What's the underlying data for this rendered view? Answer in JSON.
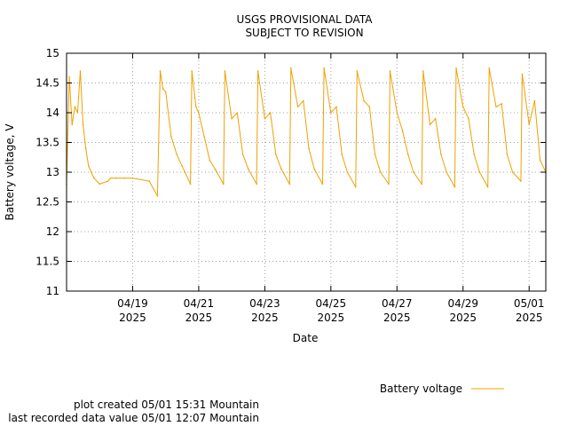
{
  "chart_data": {
    "type": "line",
    "title": "USGS PROVISIONAL DATA",
    "subtitle": "SUBJECT TO REVISION",
    "xlabel": "Date",
    "ylabel": "Battery voltage, V",
    "ylim": [
      11,
      15
    ],
    "xlim": [
      "2025-04-17 00:00",
      "2025-05-01 12:07"
    ],
    "yticks": [
      "11",
      "11.5",
      "12",
      "12.5",
      "13",
      "13.5",
      "14",
      "14.5",
      "15"
    ],
    "xticks": [
      {
        "date": "2025-04-19",
        "label": "04/19",
        "year": "2025"
      },
      {
        "date": "2025-04-21",
        "label": "04/21",
        "year": "2025"
      },
      {
        "date": "2025-04-23",
        "label": "04/23",
        "year": "2025"
      },
      {
        "date": "2025-04-25",
        "label": "04/25",
        "year": "2025"
      },
      {
        "date": "2025-04-27",
        "label": "04/27",
        "year": "2025"
      },
      {
        "date": "2025-04-29",
        "label": "04/29",
        "year": "2025"
      },
      {
        "date": "2025-05-01",
        "label": "05/01",
        "year": "2025"
      }
    ],
    "grid": true,
    "legend_position": "bottom-right",
    "series": [
      {
        "name": "Battery voltage",
        "color": "#f0a000",
        "x": [
          "2025-04-17 00:00",
          "2025-04-17 02:00",
          "2025-04-17 04:00",
          "2025-04-17 06:00",
          "2025-04-17 08:00",
          "2025-04-17 10:00",
          "2025-04-17 12:00",
          "2025-04-17 14:00",
          "2025-04-17 16:00",
          "2025-04-17 18:00",
          "2025-04-17 20:00",
          "2025-04-18 00:00",
          "2025-04-18 06:00",
          "2025-04-18 08:00",
          "2025-04-18 12:00",
          "2025-04-18 18:00",
          "2025-04-19 00:00",
          "2025-04-19 12:00",
          "2025-04-19 18:00",
          "2025-04-19 20:00",
          "2025-04-19 22:00",
          "2025-04-20 00:00",
          "2025-04-20 04:00",
          "2025-04-20 08:00",
          "2025-04-20 12:00",
          "2025-04-20 18:00",
          "2025-04-20 19:00",
          "2025-04-20 22:00",
          "2025-04-21 00:00",
          "2025-04-21 04:00",
          "2025-04-21 08:00",
          "2025-04-21 12:00",
          "2025-04-21 18:00",
          "2025-04-21 19:00",
          "2025-04-22 00:00",
          "2025-04-22 04:00",
          "2025-04-22 08:00",
          "2025-04-22 12:00",
          "2025-04-22 18:00",
          "2025-04-22 19:00",
          "2025-04-23 00:00",
          "2025-04-23 04:00",
          "2025-04-23 08:00",
          "2025-04-23 12:00",
          "2025-04-23 18:00",
          "2025-04-23 19:00",
          "2025-04-24 00:00",
          "2025-04-24 04:00",
          "2025-04-24 08:00",
          "2025-04-24 12:00",
          "2025-04-24 18:00",
          "2025-04-24 19:00",
          "2025-04-25 00:00",
          "2025-04-25 04:00",
          "2025-04-25 08:00",
          "2025-04-25 12:00",
          "2025-04-25 18:00",
          "2025-04-25 19:00",
          "2025-04-26 00:00",
          "2025-04-26 04:00",
          "2025-04-26 08:00",
          "2025-04-26 12:00",
          "2025-04-26 18:00",
          "2025-04-26 19:00",
          "2025-04-27 00:00",
          "2025-04-27 04:00",
          "2025-04-27 08:00",
          "2025-04-27 12:00",
          "2025-04-27 18:00",
          "2025-04-27 19:00",
          "2025-04-28 00:00",
          "2025-04-28 04:00",
          "2025-04-28 08:00",
          "2025-04-28 12:00",
          "2025-04-28 18:00",
          "2025-04-28 19:00",
          "2025-04-29 00:00",
          "2025-04-29 04:00",
          "2025-04-29 08:00",
          "2025-04-29 12:00",
          "2025-04-29 18:00",
          "2025-04-29 19:00",
          "2025-04-30 00:00",
          "2025-04-30 04:00",
          "2025-04-30 08:00",
          "2025-04-30 12:00",
          "2025-04-30 18:00",
          "2025-04-30 19:00",
          "2025-05-01 00:00",
          "2025-05-01 04:00",
          "2025-05-01 08:00",
          "2025-05-01 12:07"
        ],
        "y": [
          12.8,
          14.6,
          13.8,
          14.1,
          14.0,
          14.7,
          13.8,
          13.4,
          13.1,
          13.0,
          12.9,
          12.8,
          12.85,
          12.9,
          12.9,
          12.9,
          12.9,
          12.85,
          12.6,
          14.7,
          14.4,
          14.35,
          13.6,
          13.3,
          13.1,
          12.8,
          14.7,
          14.1,
          14.0,
          13.6,
          13.2,
          13.05,
          12.8,
          14.7,
          13.9,
          14.0,
          13.3,
          13.05,
          12.8,
          14.7,
          13.9,
          14.0,
          13.3,
          13.05,
          12.8,
          14.75,
          14.1,
          14.2,
          13.4,
          13.05,
          12.8,
          14.75,
          14.0,
          14.1,
          13.3,
          13.0,
          12.75,
          14.7,
          14.2,
          14.1,
          13.3,
          13.0,
          12.8,
          14.7,
          14.0,
          13.7,
          13.3,
          13.0,
          12.8,
          14.7,
          13.8,
          13.9,
          13.3,
          13.0,
          12.75,
          14.75,
          14.1,
          13.9,
          13.3,
          13.0,
          12.75,
          14.75,
          14.1,
          14.15,
          13.3,
          13.0,
          12.85,
          14.65,
          13.8,
          14.2,
          13.2,
          13.0
        ]
      }
    ]
  },
  "footer": {
    "plot_created": "plot created 05/01 15:31 Mountain",
    "last_recorded": "last recorded data value 05/01 12:07 Mountain"
  }
}
